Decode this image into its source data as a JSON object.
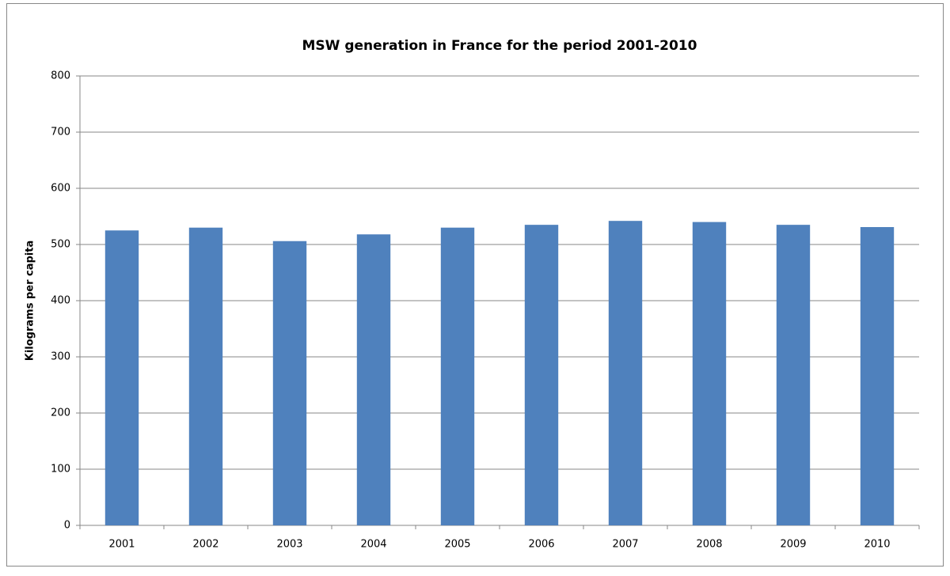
{
  "chart_data": {
    "type": "bar",
    "title": "MSW generation in France for the period 2001-2010",
    "y_label": "Kilograms per capita",
    "categories": [
      "2001",
      "2002",
      "2003",
      "2004",
      "2005",
      "2006",
      "2007",
      "2008",
      "2009",
      "2010"
    ],
    "values": [
      525,
      530,
      506,
      518,
      530,
      535,
      542,
      540,
      535,
      531
    ],
    "color": "#4f81bd",
    "ylim": [
      0,
      800
    ],
    "yticks": [
      0,
      100,
      200,
      300,
      400,
      500,
      600,
      700,
      800
    ],
    "grid": true
  }
}
